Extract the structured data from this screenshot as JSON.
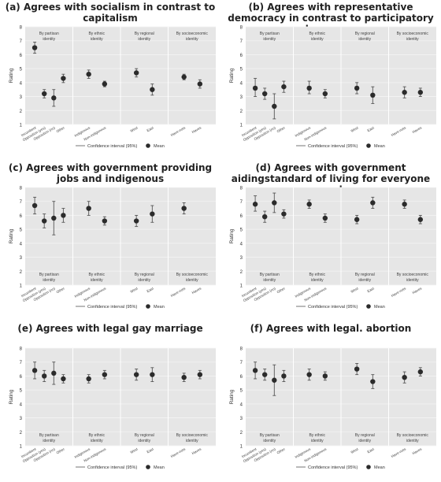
{
  "chart_data": [
    {
      "type": "scatter",
      "title": "(a) Agrees with socialism in contrast to capitalism",
      "ylabel": "Rating",
      "ylim": [
        1,
        8
      ],
      "yticks": [
        1,
        2,
        3,
        4,
        5,
        6,
        7,
        8
      ],
      "group_label_position": "top",
      "groups": [
        {
          "label": "By partisan identity",
          "categories": [
            "Incumbent",
            "Opposition (yes)",
            "Opposition (no)",
            "Other"
          ],
          "mean": [
            6.5,
            3.2,
            2.9,
            4.3
          ],
          "ci_low": [
            6.1,
            2.9,
            2.3,
            4.0
          ],
          "ci_high": [
            6.9,
            3.5,
            3.5,
            4.6
          ]
        },
        {
          "label": "By ethnic identity",
          "categories": [
            "Indigenous",
            "Non-indigenous"
          ],
          "mean": [
            4.6,
            3.9
          ],
          "ci_low": [
            4.3,
            3.7
          ],
          "ci_high": [
            4.9,
            4.1
          ]
        },
        {
          "label": "By regional identity",
          "categories": [
            "West",
            "East"
          ],
          "mean": [
            4.7,
            3.5
          ],
          "ci_low": [
            4.4,
            3.1
          ],
          "ci_high": [
            5.0,
            3.9
          ]
        },
        {
          "label": "By socioeconomic identity",
          "categories": [
            "Have-nots",
            "Haves"
          ],
          "mean": [
            4.4,
            3.9
          ],
          "ci_low": [
            4.2,
            3.6
          ],
          "ci_high": [
            4.6,
            4.2
          ]
        }
      ],
      "legend": {
        "ci_label": "Confidence interval (95%)",
        "mean_label": "Mean",
        "placement": "bottom"
      }
    },
    {
      "type": "scatter",
      "title": "(b) Agrees with representative democracy in contrast to participatory democracy",
      "ylabel": "Rating",
      "ylim": [
        1,
        8
      ],
      "yticks": [
        1,
        2,
        3,
        4,
        5,
        6,
        7,
        8
      ],
      "group_label_position": "top",
      "groups": [
        {
          "label": "By partisan identity",
          "categories": [
            "Incumbent",
            "Opposition (yes)",
            "Opposition (no)",
            "Other"
          ],
          "mean": [
            3.6,
            3.2,
            2.3,
            3.7
          ],
          "ci_low": [
            3.0,
            2.8,
            1.4,
            3.3
          ],
          "ci_high": [
            4.3,
            3.6,
            3.2,
            4.1
          ]
        },
        {
          "label": "By ethnic identity",
          "categories": [
            "Indigenous",
            "Non-indigenous"
          ],
          "mean": [
            3.6,
            3.2
          ],
          "ci_low": [
            3.2,
            2.9
          ],
          "ci_high": [
            4.1,
            3.5
          ]
        },
        {
          "label": "By regional identity",
          "categories": [
            "West",
            "East"
          ],
          "mean": [
            3.6,
            3.1
          ],
          "ci_low": [
            3.2,
            2.5
          ],
          "ci_high": [
            4.0,
            3.7
          ]
        },
        {
          "label": "By socioeconomic identity",
          "categories": [
            "Have-nots",
            "Haves"
          ],
          "mean": [
            3.3,
            3.3
          ],
          "ci_low": [
            2.9,
            3.0
          ],
          "ci_high": [
            3.7,
            3.6
          ]
        }
      ],
      "legend": {
        "ci_label": "Confidence interval (95%)",
        "mean_label": "Mean",
        "placement": "bottom"
      }
    },
    {
      "type": "scatter",
      "title": "(c) Agrees with government providing jobs and indigenous",
      "ylabel": "Rating",
      "ylim": [
        1,
        8
      ],
      "yticks": [
        1,
        2,
        3,
        4,
        5,
        6,
        7,
        8
      ],
      "group_label_position": "bottom",
      "groups": [
        {
          "label": "By partisan identity",
          "categories": [
            "Incumbent",
            "Opposition (yes)",
            "Opposition (no)",
            "Other"
          ],
          "mean": [
            6.7,
            5.6,
            5.8,
            6.0
          ],
          "ci_low": [
            6.1,
            5.1,
            4.6,
            5.5
          ],
          "ci_high": [
            7.3,
            6.1,
            7.0,
            6.5
          ]
        },
        {
          "label": "By ethnic identity",
          "categories": [
            "Indigenous",
            "Non-indigenous"
          ],
          "mean": [
            6.5,
            5.6
          ],
          "ci_low": [
            6.0,
            5.3
          ],
          "ci_high": [
            7.0,
            5.9
          ]
        },
        {
          "label": "By regional identity",
          "categories": [
            "West",
            "East"
          ],
          "mean": [
            5.6,
            6.1
          ],
          "ci_low": [
            5.2,
            5.5
          ],
          "ci_high": [
            6.0,
            6.7
          ]
        },
        {
          "label": "By socioeconomic identity",
          "categories": [
            "Have-nots",
            "Haves"
          ],
          "mean": [
            6.5,
            null
          ],
          "ci_low": [
            6.1,
            null
          ],
          "ci_high": [
            6.9,
            null
          ]
        }
      ],
      "legend": {
        "ci_label": "Confidence interval (95%)",
        "mean_label": "Mean",
        "placement": "bottom"
      }
    },
    {
      "type": "scatter",
      "title": "(d) Agrees with government aidingstandard of living for everyone people",
      "ylabel": "Rating",
      "ylim": [
        1,
        8
      ],
      "yticks": [
        1,
        2,
        3,
        4,
        5,
        6,
        7,
        8
      ],
      "group_label_position": "bottom",
      "groups": [
        {
          "label": "By partisan identity",
          "categories": [
            "Incumbent",
            "Opposition (yes)",
            "Opposition (no)",
            "Other"
          ],
          "mean": [
            6.8,
            5.9,
            6.9,
            6.1
          ],
          "ci_low": [
            6.3,
            5.5,
            6.2,
            5.8
          ],
          "ci_high": [
            7.4,
            6.3,
            7.6,
            6.4
          ]
        },
        {
          "label": "By ethnic identity",
          "categories": [
            "Indigenous",
            "Non-indigenous"
          ],
          "mean": [
            6.8,
            5.8
          ],
          "ci_low": [
            6.5,
            5.5
          ],
          "ci_high": [
            7.1,
            6.1
          ]
        },
        {
          "label": "By regional identity",
          "categories": [
            "West",
            "East"
          ],
          "mean": [
            5.7,
            6.9
          ],
          "ci_low": [
            5.4,
            6.5
          ],
          "ci_high": [
            6.0,
            7.3
          ]
        },
        {
          "label": "By socioeconomic identity",
          "categories": [
            "Have-nots",
            "Haves"
          ],
          "mean": [
            6.8,
            5.7
          ],
          "ci_low": [
            6.5,
            5.4
          ],
          "ci_high": [
            7.1,
            6.0
          ]
        }
      ],
      "legend": {
        "ci_label": "Confidence interval (95%)",
        "mean_label": "Mean",
        "placement": "bottom"
      }
    },
    {
      "type": "scatter",
      "title": "(e) Agrees with legal gay marriage",
      "ylabel": "Rating",
      "ylim": [
        1,
        8
      ],
      "yticks": [
        1,
        2,
        3,
        4,
        5,
        6,
        7,
        8
      ],
      "group_label_position": "bottom",
      "groups": [
        {
          "label": "By partisan identity",
          "categories": [
            "Incumbent",
            "Opposition (yes)",
            "Opposition (no)",
            "Other"
          ],
          "mean": [
            6.4,
            6.0,
            6.2,
            5.8
          ],
          "ci_low": [
            5.8,
            5.6,
            5.4,
            5.5
          ],
          "ci_high": [
            7.0,
            6.4,
            7.0,
            6.1
          ]
        },
        {
          "label": "By ethnic identity",
          "categories": [
            "Indigenous",
            "Non-indigenous"
          ],
          "mean": [
            5.8,
            6.1
          ],
          "ci_low": [
            5.5,
            5.8
          ],
          "ci_high": [
            6.1,
            6.4
          ]
        },
        {
          "label": "By regional identity",
          "categories": [
            "West",
            "East"
          ],
          "mean": [
            6.1,
            6.1
          ],
          "ci_low": [
            5.7,
            5.6
          ],
          "ci_high": [
            6.5,
            6.6
          ]
        },
        {
          "label": "By socioeconomic identity",
          "categories": [
            "Have-nots",
            "Haves"
          ],
          "mean": [
            5.9,
            6.1
          ],
          "ci_low": [
            5.6,
            5.8
          ],
          "ci_high": [
            6.2,
            6.4
          ]
        }
      ],
      "legend": {
        "ci_label": "Confidence interval (95%)",
        "mean_label": "Mean",
        "placement": "bottom"
      }
    },
    {
      "type": "scatter",
      "title": "(f) Agrees with legal. abortion",
      "ylabel": "Rating",
      "ylim": [
        1,
        8
      ],
      "yticks": [
        1,
        2,
        3,
        4,
        5,
        6,
        7,
        8
      ],
      "group_label_position": "bottom",
      "groups": [
        {
          "label": "By partisan identity",
          "categories": [
            "Incumbent",
            "Opposition (yes)",
            "Opposition (no)",
            "Other"
          ],
          "mean": [
            6.4,
            6.1,
            5.7,
            6.0
          ],
          "ci_low": [
            5.8,
            5.7,
            4.6,
            5.6
          ],
          "ci_high": [
            7.0,
            6.5,
            6.8,
            6.4
          ]
        },
        {
          "label": "By ethnic identity",
          "categories": [
            "Indigenous",
            "Non-indigenous"
          ],
          "mean": [
            6.1,
            6.0
          ],
          "ci_low": [
            5.7,
            5.7
          ],
          "ci_high": [
            6.5,
            6.3
          ]
        },
        {
          "label": "By regional identity",
          "categories": [
            "West",
            "East"
          ],
          "mean": [
            6.5,
            5.6
          ],
          "ci_low": [
            6.1,
            5.1
          ],
          "ci_high": [
            6.9,
            6.1
          ]
        },
        {
          "label": "By socioeconomic identity",
          "categories": [
            "Have-nots",
            "Haves"
          ],
          "mean": [
            5.9,
            6.3
          ],
          "ci_low": [
            5.5,
            6.0
          ],
          "ci_high": [
            6.3,
            6.6
          ]
        }
      ],
      "legend": {
        "ci_label": "Confidence interval (95%)",
        "mean_label": "Mean",
        "placement": "bottom"
      }
    }
  ]
}
